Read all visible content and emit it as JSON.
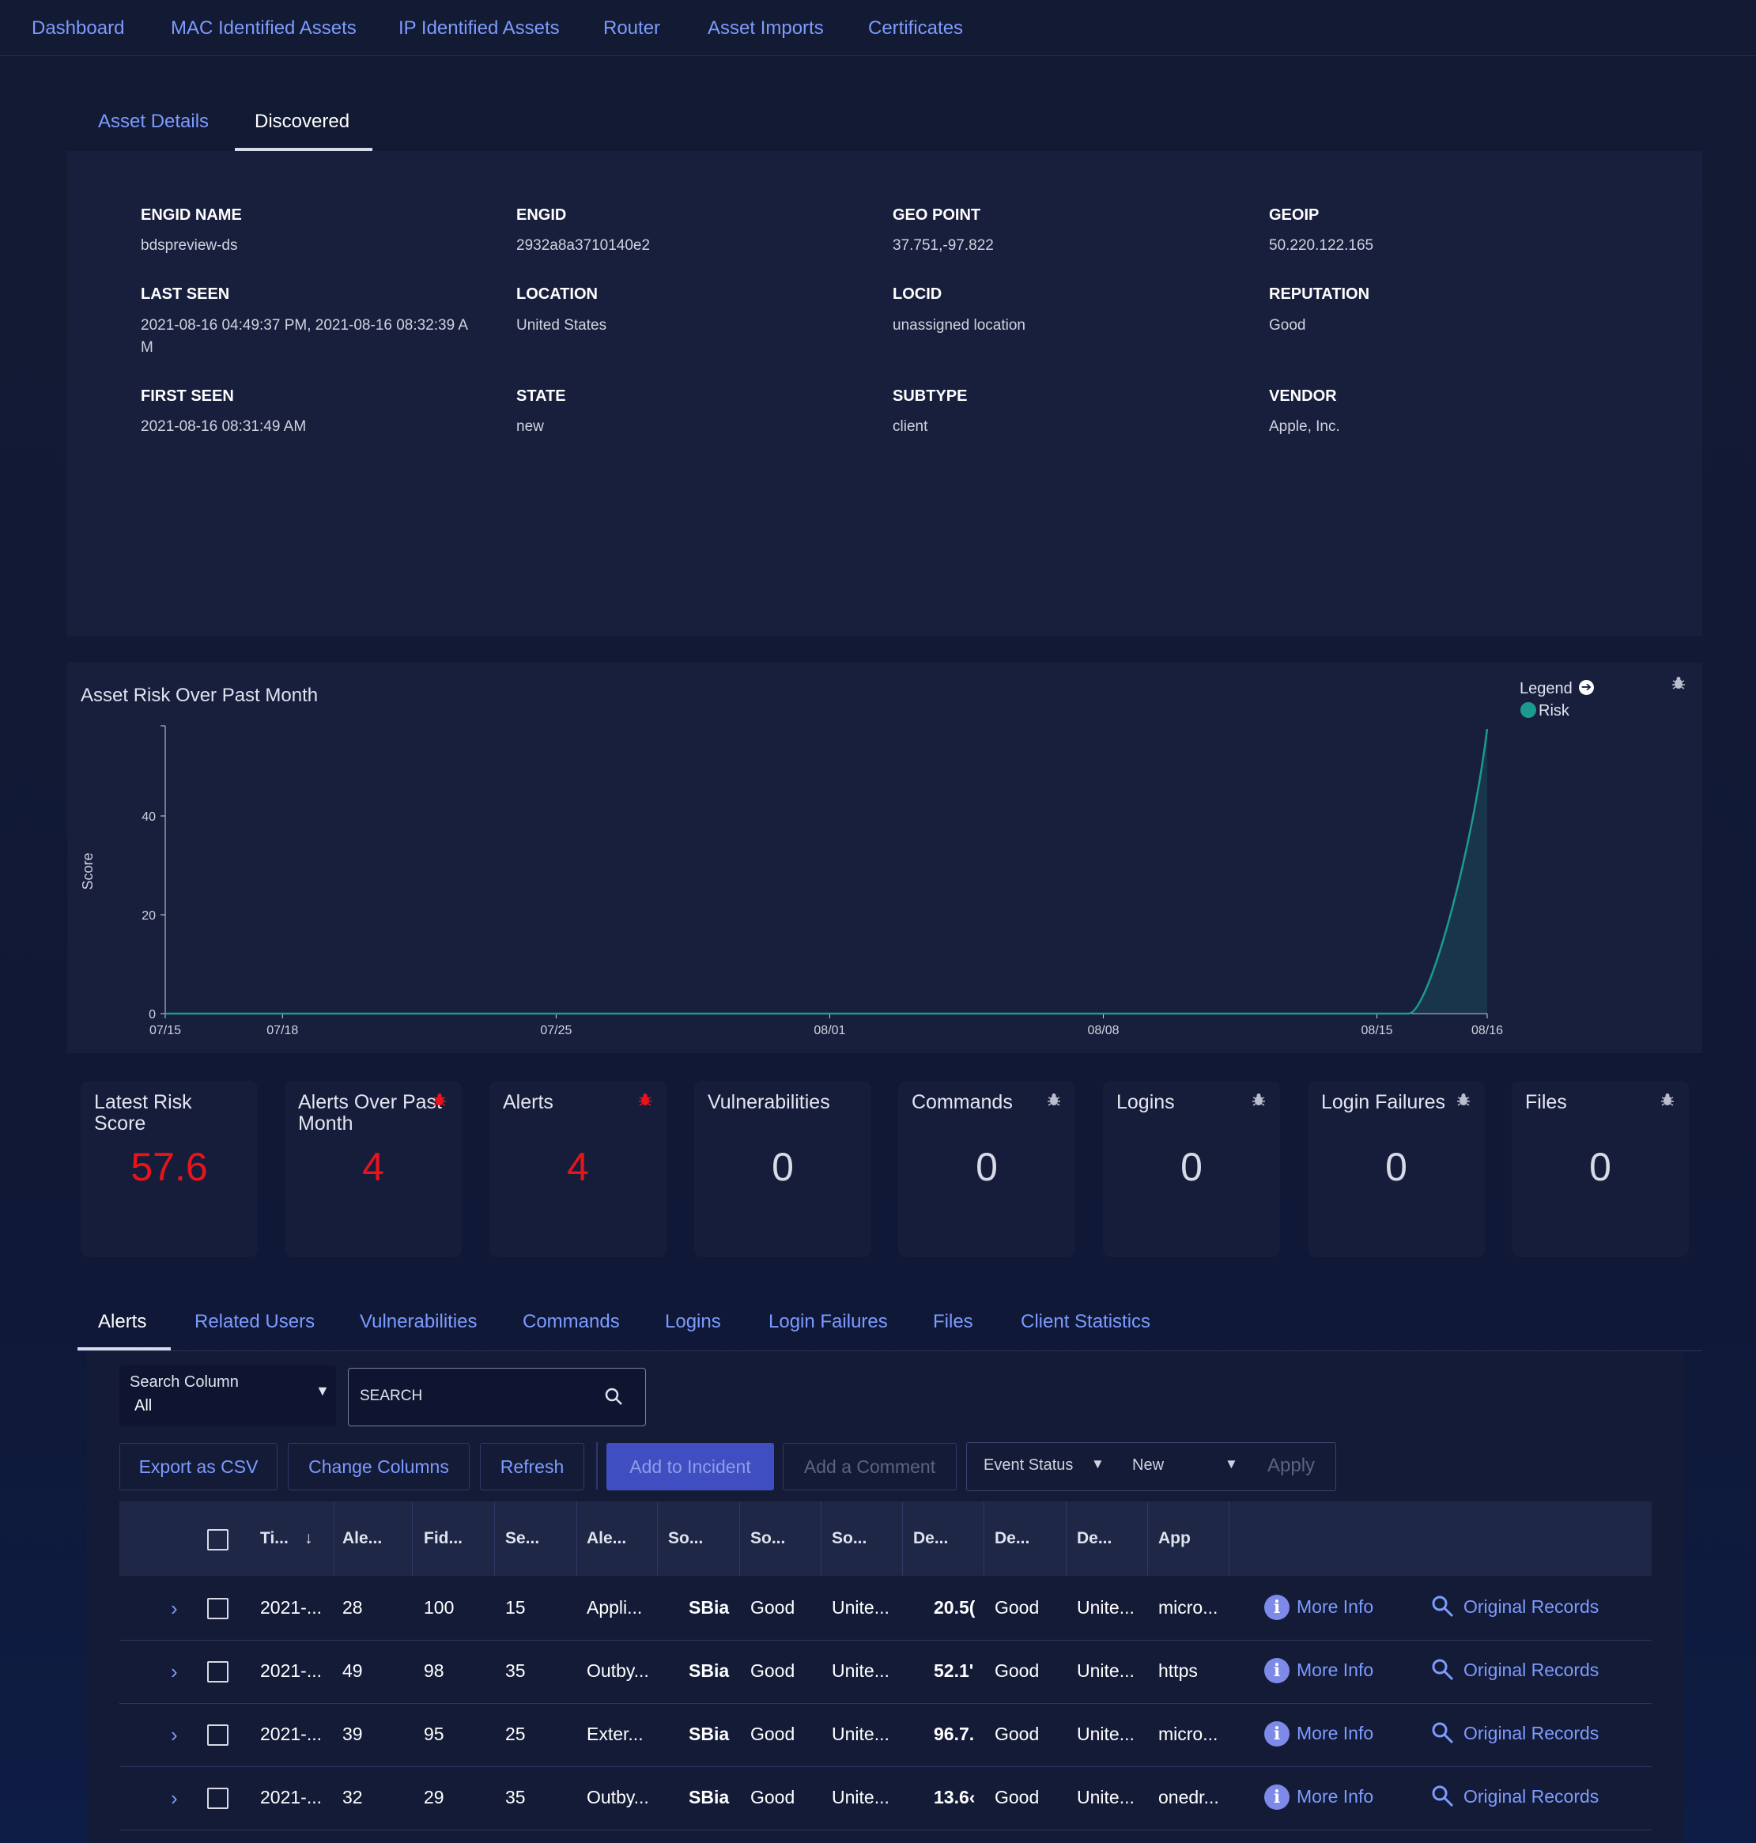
{
  "nav": {
    "items": [
      "Dashboard",
      "MAC Identified Assets",
      "IP Identified Assets",
      "Router",
      "Asset Imports",
      "Certificates"
    ]
  },
  "subtabs": {
    "asset_details": "Asset Details",
    "discovered": "Discovered"
  },
  "details": {
    "engid_name_label": "ENGID NAME",
    "engid_name": "bdspreview-ds",
    "engid_label": "ENGID",
    "engid": "2932a8a3710140e2",
    "geo_point_label": "GEO POINT",
    "geo_point": "37.751,-97.822",
    "geoip_label": "GEOIP",
    "geoip": "50.220.122.165",
    "last_seen_label": "LAST SEEN",
    "last_seen_1": "2021-08-16 04:49:37 PM, 2021-08-16 08:32:39 A",
    "last_seen_2": "M",
    "location_label": "LOCATION",
    "location": "United States",
    "locid_label": "LOCID",
    "locid": "unassigned location",
    "reputation_label": "REPUTATION",
    "reputation": "Good",
    "first_seen_label": "FIRST SEEN",
    "first_seen": "2021-08-16 08:31:49 AM",
    "state_label": "STATE",
    "state": "new",
    "subtype_label": "SUBTYPE",
    "subtype": "client",
    "vendor_label": "VENDOR",
    "vendor": "Apple, Inc."
  },
  "chart_data": {
    "type": "area",
    "title": "Asset Risk Over Past Month",
    "xlabel": "",
    "ylabel": "Score",
    "x": [
      "07/15",
      "07/18",
      "07/25",
      "08/01",
      "08/08",
      "08/15",
      "08/16"
    ],
    "x_ticks": [
      "07/15",
      "07/18",
      "07/25",
      "08/01",
      "08/08",
      "08/15",
      "08/16"
    ],
    "y_ticks": [
      0,
      20,
      40
    ],
    "ylim": [
      0,
      57.6
    ],
    "legend_title": "Legend",
    "legend_position": "top-right",
    "series": [
      {
        "name": "Risk",
        "color": "#1d9a8f",
        "values": [
          0,
          0,
          0,
          0,
          0,
          0,
          57.6
        ]
      }
    ]
  },
  "cards": [
    {
      "title": "Latest Risk Score",
      "value": "57.6",
      "tone": "red",
      "icon": ""
    },
    {
      "title": "Alerts Over Past Month",
      "value": "4",
      "tone": "red",
      "icon": "bug-red"
    },
    {
      "title": "Alerts",
      "value": "4",
      "tone": "red",
      "icon": "bug-red"
    },
    {
      "title": "Vulnerabilities",
      "value": "0",
      "tone": "gray",
      "icon": ""
    },
    {
      "title": "Commands",
      "value": "0",
      "tone": "gray",
      "icon": "bug-gray"
    },
    {
      "title": "Logins",
      "value": "0",
      "tone": "gray",
      "icon": "bug-gray"
    },
    {
      "title": "Login Failures",
      "value": "0",
      "tone": "gray",
      "icon": "bug-gray"
    },
    {
      "title": "Files",
      "value": "0",
      "tone": "gray",
      "icon": "bug-gray"
    }
  ],
  "lower_tabs": [
    "Alerts",
    "Related Users",
    "Vulnerabilities",
    "Commands",
    "Logins",
    "Login Failures",
    "Files",
    "Client Statistics"
  ],
  "toolbar": {
    "search_column_label": "Search Column",
    "search_column_value": "All",
    "search_placeholder": "SEARCH",
    "export_csv": "Export as CSV",
    "change_columns": "Change Columns",
    "refresh": "Refresh",
    "add_to_incident": "Add to Incident",
    "add_comment": "Add a Comment",
    "event_status_label": "Event Status",
    "event_status_value": "New",
    "apply": "Apply"
  },
  "table": {
    "headers": [
      "Ti...",
      "Ale...",
      "Fid...",
      "Se...",
      "Ale...",
      "So...",
      "So...",
      "So...",
      "De...",
      "De...",
      "De...",
      "App"
    ],
    "more_info": "More Info",
    "original_records": "Original Records",
    "rows": [
      [
        "2021-...",
        "28",
        "100",
        "15",
        "Appli...",
        "SBiai",
        "Good",
        "Unite...",
        "20.5(",
        "Good",
        "Unite...",
        "micro..."
      ],
      [
        "2021-...",
        "49",
        "98",
        "35",
        "Outby...",
        "SBiai",
        "Good",
        "Unite...",
        "52.1'",
        "Good",
        "Unite...",
        "https"
      ],
      [
        "2021-...",
        "39",
        "95",
        "25",
        "Exter...",
        "SBiai",
        "Good",
        "Unite...",
        "96.7.",
        "Good",
        "Unite...",
        "micro..."
      ],
      [
        "2021-...",
        "32",
        "29",
        "35",
        "Outby...",
        "SBiai",
        "Good",
        "Unite...",
        "13.6‹",
        "Good",
        "Unite...",
        "onedr..."
      ]
    ]
  }
}
